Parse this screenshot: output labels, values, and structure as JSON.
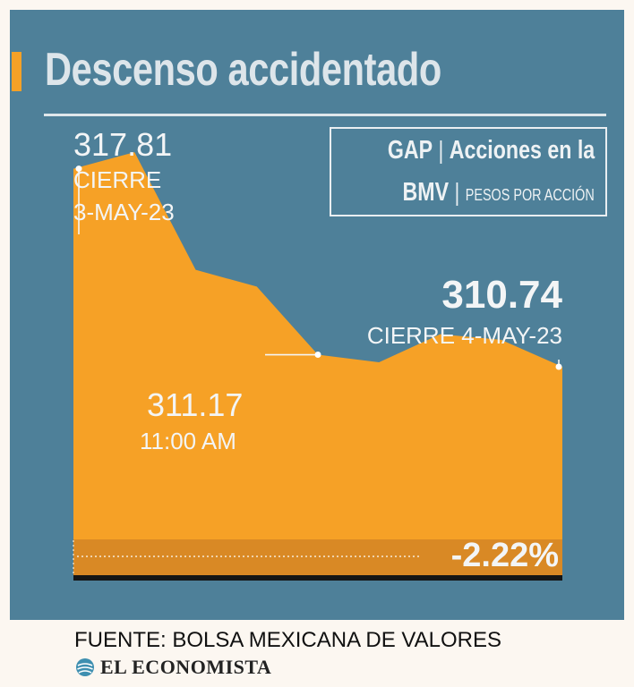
{
  "title": "Descenso accidentado",
  "box": {
    "ticker": "GAP",
    "line1_text": "Acciones en la",
    "exchange": "BMV",
    "unit": "PESOS POR ACCIÓN"
  },
  "annotations": {
    "start_value": "317.81",
    "start_label": "CIERRE",
    "start_date": "3-MAY-23",
    "mid_value": "311.17",
    "mid_time": "11:00 AM",
    "end_value": "310.74",
    "end_label": "CIERRE 4-MAY-23",
    "change": "-2.22%"
  },
  "source": "FUENTE: BOLSA MEXICANA DE VALORES",
  "brand": "EL ECONOMISTA",
  "colors": {
    "panel": "#4e8099",
    "area": "#f6a126",
    "area_band": "#d98925",
    "baseline": "#151515"
  },
  "chart_data": {
    "type": "area",
    "x": [
      0,
      1,
      2,
      3,
      4,
      5,
      6,
      7,
      8
    ],
    "values": [
      317.81,
      318.4,
      314.2,
      313.6,
      311.17,
      310.9,
      311.9,
      311.7,
      310.74
    ],
    "ylim": [
      303.3,
      320.0
    ],
    "grid": false,
    "baseline_change_pct": "-2.22%"
  }
}
